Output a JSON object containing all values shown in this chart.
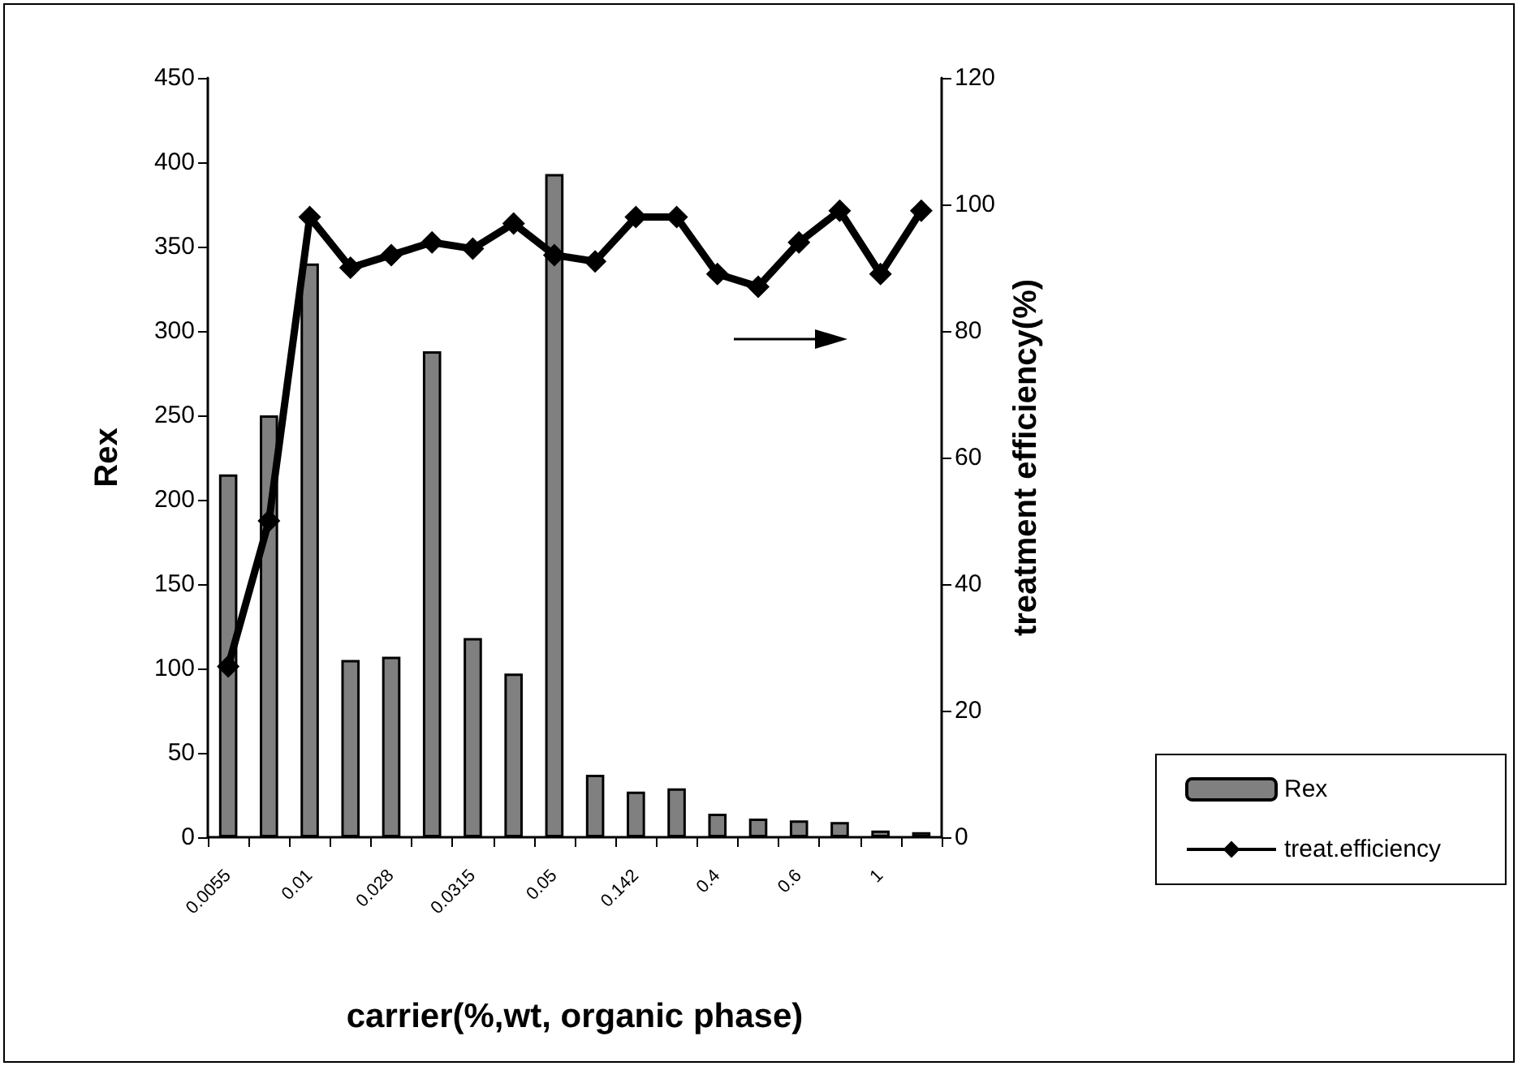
{
  "chart_data": {
    "type": "bar",
    "xlabel": "carrier(%,wt, organic phase)",
    "ylabel": "Rex",
    "y2label": "treatment efficiency(%)",
    "categories": [
      "0.0055",
      null,
      "0.01",
      null,
      "0.028",
      null,
      "0.0315",
      null,
      "0.05",
      null,
      "0.142",
      null,
      "0.4",
      null,
      "0.6",
      null,
      "1",
      null
    ],
    "series": [
      {
        "name": "Rex",
        "color": "#808080",
        "values": [
          215,
          250,
          340,
          105,
          107,
          288,
          118,
          97,
          393,
          37,
          27,
          29,
          14,
          11,
          10,
          9,
          4,
          3
        ]
      },
      {
        "name": "treat.efficiency",
        "type": "line",
        "axis": "y2",
        "color": "#000000",
        "values": [
          27,
          50,
          98,
          90,
          92,
          94,
          93,
          97,
          92,
          91,
          98,
          98,
          89,
          87,
          94,
          99,
          89,
          99
        ]
      }
    ],
    "ylim": [
      0,
      450
    ],
    "yticks": [
      0,
      50,
      100,
      150,
      200,
      250,
      300,
      350,
      400,
      450
    ],
    "y2lim": [
      0,
      120
    ],
    "y2ticks": [
      0,
      20,
      40,
      60,
      80,
      100,
      120
    ],
    "marker": "diamond",
    "line_style": "solid",
    "legend": "right",
    "grid": false
  }
}
